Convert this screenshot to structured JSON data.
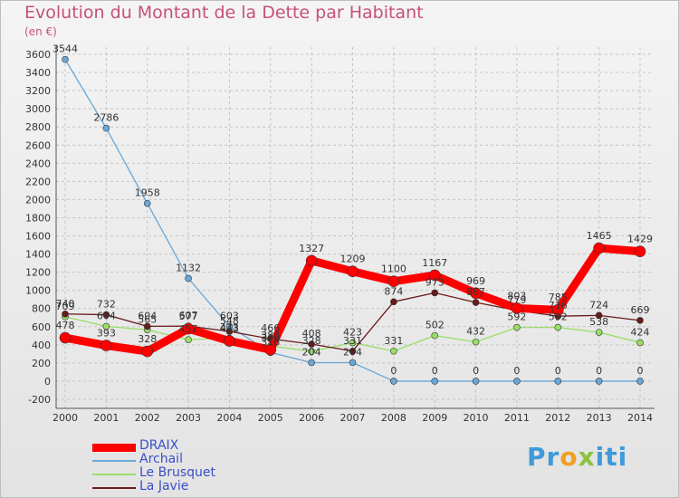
{
  "chart_data": {
    "type": "line",
    "title": "Evolution du Montant de la Dette par Habitant",
    "unit_label": "(en €)",
    "xlabel": "",
    "ylabel": "",
    "x": [
      "2000",
      "2001",
      "2002",
      "2003",
      "2004",
      "2005",
      "2006",
      "2007",
      "2008",
      "2009",
      "2010",
      "2011",
      "2012",
      "2013",
      "2014"
    ],
    "ylim": [
      -200,
      3600
    ],
    "yticks": [
      -200,
      0,
      200,
      400,
      600,
      800,
      1000,
      1200,
      1400,
      1600,
      1800,
      2000,
      2200,
      2400,
      2600,
      2800,
      3000,
      3200,
      3400,
      3600
    ],
    "grid": "horizontal dashed",
    "legend_position": "bottom-left",
    "series": [
      {
        "name": "DRAIX",
        "color": "#ff0000",
        "values": [
          478,
          393,
          328,
          577,
          443,
          346,
          1327,
          1209,
          1100,
          1167,
          969,
          803,
          785,
          1465,
          1429
        ]
      },
      {
        "name": "Archail",
        "color": "#6aa7d6",
        "values": [
          3544,
          2786,
          1958,
          1132,
          603,
          316,
          204,
          204,
          0,
          0,
          0,
          0,
          0,
          0,
          0
        ]
      },
      {
        "name": "Le Brusquet",
        "color": "#99dd66",
        "values": [
          709,
          604,
          565,
          457,
          473,
          388,
          328,
          423,
          331,
          502,
          432,
          592,
          592,
          538,
          424
        ]
      },
      {
        "name": "La Javie",
        "color": "#6b1a1a",
        "values": [
          740,
          732,
          604,
          607,
          548,
          466,
          408,
          331,
          874,
          973,
          867,
          779,
          716,
          724,
          669
        ]
      }
    ],
    "data_labels": [
      {
        "series": 0,
        "values": [
          "478",
          "393",
          "328",
          "577",
          "443",
          "346",
          "1327",
          "1209",
          "1100",
          "1167",
          "969",
          "803",
          "785",
          "1465",
          "1429"
        ]
      },
      {
        "series": 1,
        "values": [
          "3544",
          "2786",
          "1958",
          "1132",
          "603",
          "316",
          "204",
          "204",
          "0",
          "0",
          "0",
          "0",
          "0",
          "0",
          "0"
        ]
      },
      {
        "series": 2,
        "values": [
          "709",
          "604",
          "565",
          "457",
          "473",
          "388",
          "328",
          "423",
          "331",
          "502",
          "432",
          "592",
          "592",
          "538",
          "424"
        ]
      },
      {
        "series": 3,
        "values": [
          "740",
          "732",
          "604",
          "607",
          "548",
          "466",
          "408",
          "331",
          "874",
          "973",
          "867",
          "779",
          "716",
          "724",
          "669"
        ]
      }
    ]
  },
  "logo": {
    "p1": "Pr",
    "p2": "o",
    "p3": "x",
    "p4": "iti"
  }
}
